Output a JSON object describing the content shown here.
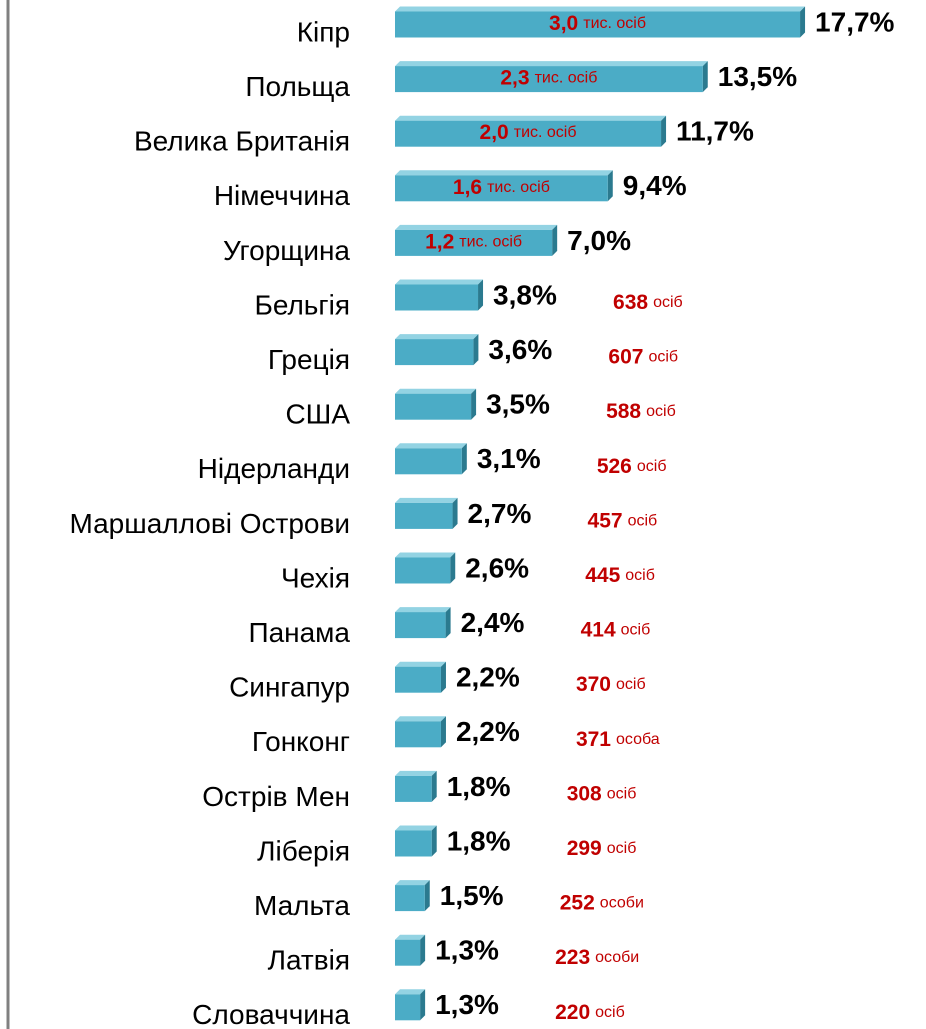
{
  "chart_data": {
    "type": "hbar3d",
    "categories": [
      "Кіпр",
      "Польща",
      "Велика Британія",
      "Німеччина",
      "Угорщина",
      "Бельгія",
      "Греція",
      "США",
      "Нідерланди",
      "Маршаллові Острови",
      "Чехія",
      "Панама",
      "Сингапур",
      "Гонконг",
      "Острів Мен",
      "Ліберія",
      "Мальта",
      "Латвія",
      "Словаччина"
    ],
    "values": [
      17.7,
      13.5,
      11.7,
      9.4,
      7.0,
      3.8,
      3.6,
      3.5,
      3.1,
      2.7,
      2.6,
      2.4,
      2.2,
      2.2,
      1.8,
      1.8,
      1.5,
      1.3,
      1.3
    ],
    "value_labels": [
      "17,7%",
      "13,5%",
      "11,7%",
      "9,4%",
      "7,0%",
      "3,8%",
      "3,6%",
      "3,5%",
      "3,1%",
      "2,7%",
      "2,6%",
      "2,4%",
      "2,2%",
      "2,2%",
      "1,8%",
      "1,8%",
      "1,5%",
      "1,3%",
      "1,3%"
    ],
    "annotations": [
      {
        "number": "3,0",
        "unit": "тис. осіб"
      },
      {
        "number": "2,3",
        "unit": "тис. осіб"
      },
      {
        "number": "2,0",
        "unit": "тис. осіб"
      },
      {
        "number": "1,6",
        "unit": "тис. осіб"
      },
      {
        "number": "1,2",
        "unit": "тис. осіб"
      },
      {
        "number": "638",
        "unit": "осіб"
      },
      {
        "number": "607",
        "unit": "осіб"
      },
      {
        "number": "588",
        "unit": "осіб"
      },
      {
        "number": "526",
        "unit": "осіб"
      },
      {
        "number": "457",
        "unit": "осіб"
      },
      {
        "number": "445",
        "unit": "осіб"
      },
      {
        "number": "414",
        "unit": "осіб"
      },
      {
        "number": "370",
        "unit": "осіб"
      },
      {
        "number": "371",
        "unit": "особа"
      },
      {
        "number": "308",
        "unit": "осіб"
      },
      {
        "number": "299",
        "unit": "осіб"
      },
      {
        "number": "252",
        "unit": "особи"
      },
      {
        "number": "223",
        "unit": "особи"
      },
      {
        "number": "220",
        "unit": "осіб"
      }
    ],
    "annotation_inside": [
      true,
      true,
      true,
      true,
      true,
      false,
      false,
      false,
      false,
      false,
      false,
      false,
      false,
      false,
      false,
      false,
      false,
      false,
      false
    ],
    "xlim": [
      0,
      18
    ],
    "color": "#4bacc6",
    "annotation_color": "#c00000"
  }
}
